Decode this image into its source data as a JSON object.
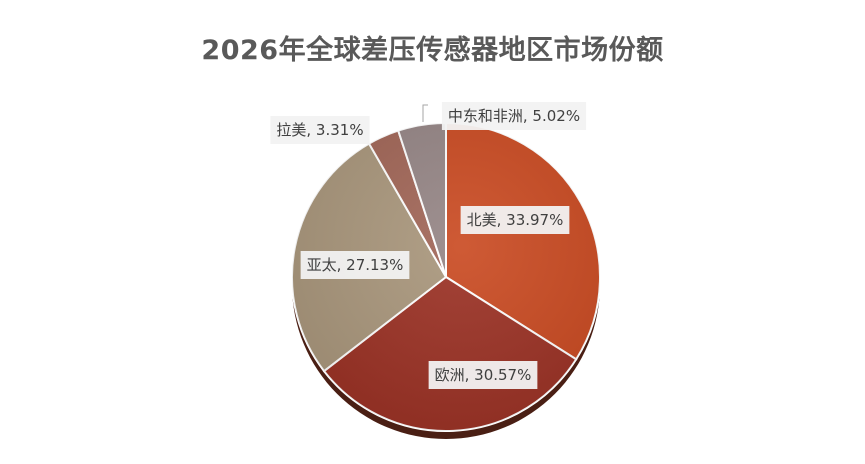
{
  "chart_data": {
    "type": "pie",
    "title": "2026年全球差压传感器地区市场份额",
    "unit": "%",
    "slices": [
      {
        "label": "北美",
        "value": 33.97,
        "display": "北美, 33.97%",
        "color": "#c9481f"
      },
      {
        "label": "欧洲",
        "value": 30.57,
        "display": "欧洲, 30.57%",
        "color": "#9a2f22"
      },
      {
        "label": "亚太",
        "value": 27.13,
        "display": "亚太, 27.13%",
        "color": "#a8957a"
      },
      {
        "label": "拉美",
        "value": 3.31,
        "display": "拉美, 3.31%",
        "color": "#a06455"
      },
      {
        "label": "中东和非洲",
        "value": 5.02,
        "display": "中东和非洲, 5.02%",
        "color": "#948484"
      }
    ],
    "legend": "none",
    "data_labels": "category, percentage"
  }
}
